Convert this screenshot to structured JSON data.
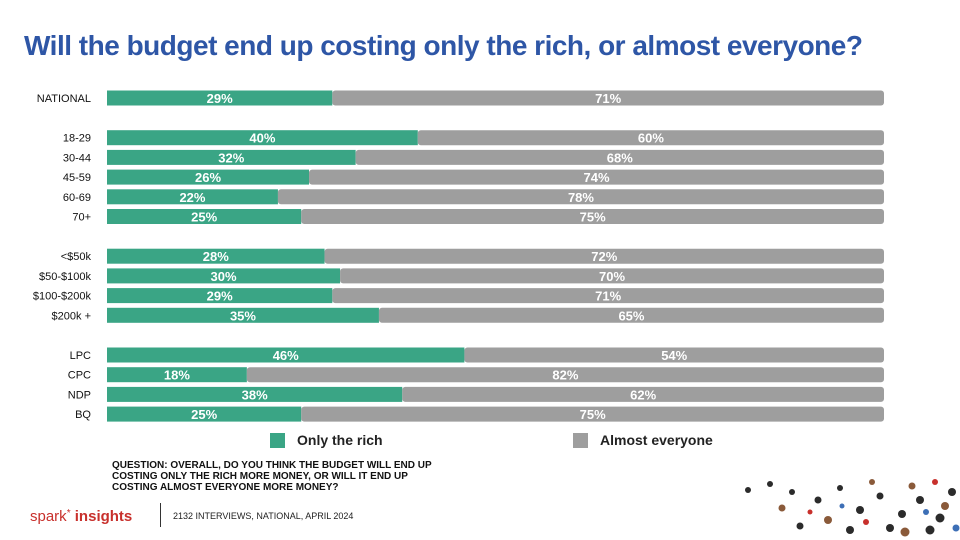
{
  "title": "Will the budget end up costing only the rich, or almost everyone?",
  "colors": {
    "title": "#2e56a6",
    "only_rich": "#3aa585",
    "almost_everyone": "#9e9e9e",
    "brand": "#c8302c"
  },
  "legend": {
    "only_rich": "Only the rich",
    "almost_everyone": "Almost everyone"
  },
  "question": "QUESTION: OVERALL, DO YOU THINK THE BUDGET WILL END UP COSTING ONLY THE RICH MORE MONEY, OR WILL IT END UP COSTING ALMOST EVERYONE MORE MONEY?",
  "footer": {
    "brand_light": "spark",
    "brand_bold": "insights",
    "note": "2132 INTERVIEWS, NATIONAL, APRIL 2024"
  },
  "chart_data": {
    "type": "bar",
    "orientation": "horizontal",
    "stacked": true,
    "percent_suffix": "%",
    "categories": [
      "NATIONAL",
      "18-29",
      "30-44",
      "45-59",
      "60-69",
      "70+",
      "<$50k",
      "$50-$100k",
      "$100-$200k",
      "$200k +",
      "LPC",
      "CPC",
      "NDP",
      "BQ"
    ],
    "groups": [
      [
        "NATIONAL"
      ],
      [
        "18-29",
        "30-44",
        "45-59",
        "60-69",
        "70+"
      ],
      [
        "<$50k",
        "$50-$100k",
        "$100-$200k",
        "$200k +"
      ],
      [
        "LPC",
        "CPC",
        "NDP",
        "BQ"
      ]
    ],
    "series": [
      {
        "name": "Only the rich",
        "values": [
          29,
          40,
          32,
          26,
          22,
          25,
          28,
          30,
          29,
          35,
          46,
          18,
          38,
          25
        ]
      },
      {
        "name": "Almost everyone",
        "values": [
          71,
          60,
          68,
          74,
          78,
          75,
          72,
          70,
          71,
          65,
          54,
          82,
          62,
          75
        ]
      }
    ],
    "xlim": [
      0,
      100
    ],
    "legend_position": "bottom"
  }
}
